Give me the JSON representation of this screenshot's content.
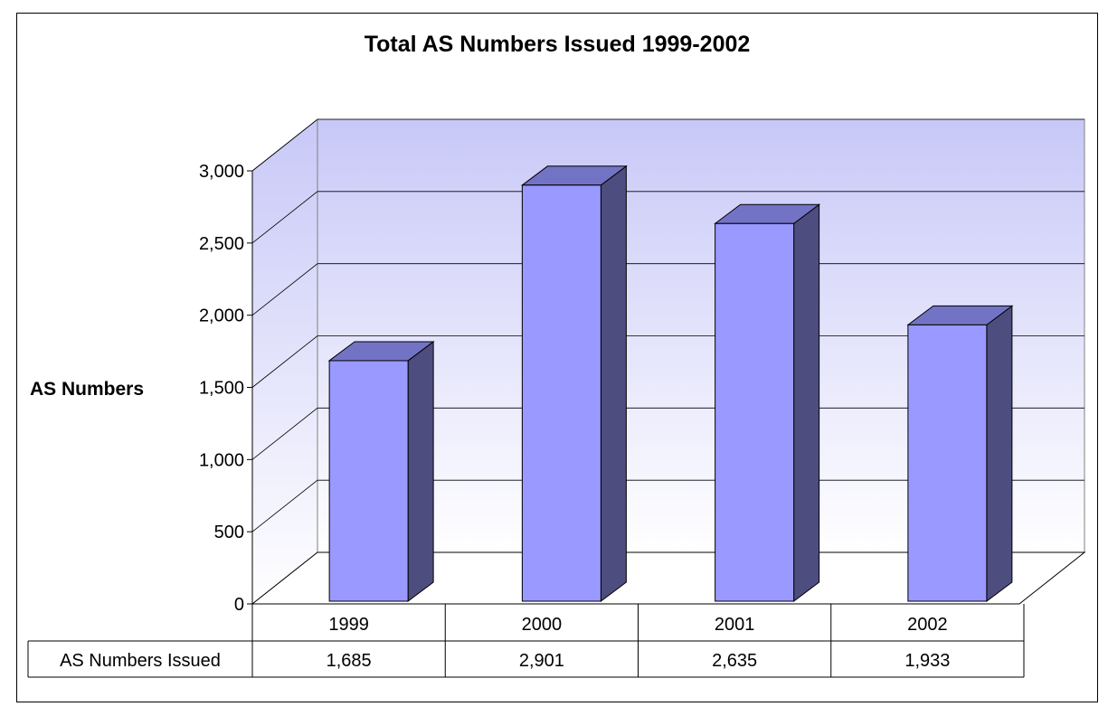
{
  "chart_data": {
    "type": "bar",
    "title": "Total AS Numbers Issued 1999-2002",
    "xlabel": "",
    "ylabel": "AS Numbers",
    "categories": [
      "1999",
      "2000",
      "2001",
      "2002"
    ],
    "series": [
      {
        "name": "AS Numbers Issued",
        "values": [
          1685,
          2901,
          2635,
          1933
        ]
      }
    ],
    "value_labels": [
      "1,685",
      "2,901",
      "2,635",
      "1,933"
    ],
    "ylim": [
      0,
      3000
    ],
    "yticks": [
      0,
      500,
      1000,
      1500,
      2000,
      2500,
      3000
    ],
    "ytick_labels": [
      "0",
      "500",
      "1,000",
      "1,500",
      "2,000",
      "2,500",
      "3,000"
    ],
    "grid": true,
    "three_d": true,
    "data_table": true,
    "colors": {
      "bar_front": "#9999ff",
      "bar_top": "#7373c6",
      "bar_side": "#4d4d80",
      "wall_top": "#c8c8f8",
      "wall_bottom": "#ffffff"
    }
  }
}
